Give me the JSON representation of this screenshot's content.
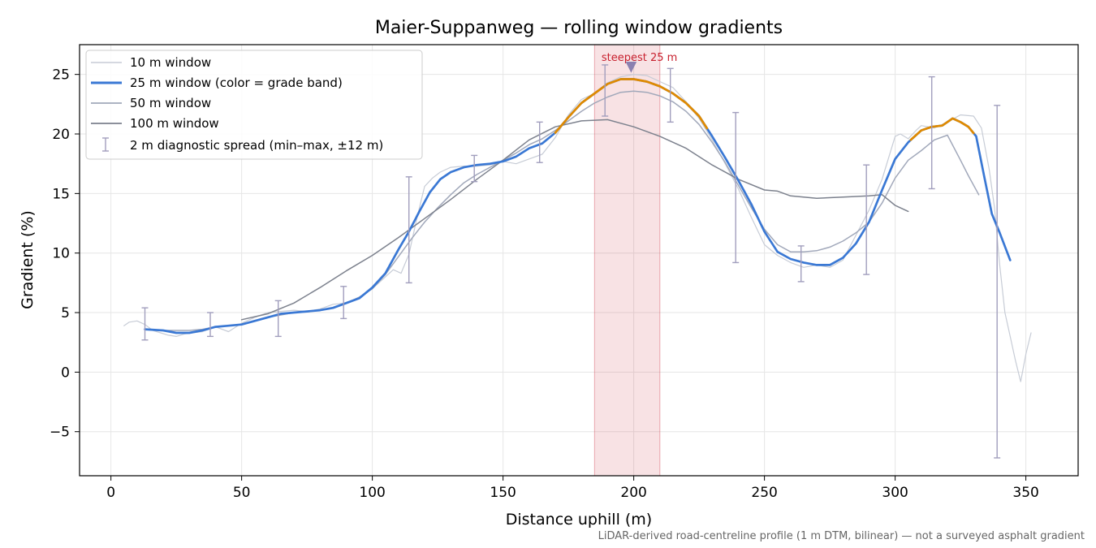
{
  "chart_data": {
    "type": "line",
    "title": "Maier-Suppanweg — rolling window gradients",
    "xlabel": "Distance uphill (m)",
    "ylabel": "Gradient (%)",
    "xlim": [
      -12,
      370
    ],
    "ylim": [
      -8.7,
      27.5
    ],
    "x_ticks": [
      0,
      50,
      100,
      150,
      200,
      250,
      300,
      350
    ],
    "y_ticks": [
      -5,
      0,
      5,
      10,
      15,
      20,
      25
    ],
    "grid": true,
    "legend_position": "upper-left",
    "footnote": "LiDAR-derived road-centreline profile (1 m DTM, bilinear) — not a surveyed asphalt gradient",
    "band_colors": {
      "moderate": "#3a78d4",
      "steep": "#e08a00"
    },
    "steepest": {
      "x_start": 185,
      "x_end": 210,
      "peak_x": 199,
      "peak_y": 24.6,
      "label": "steepest 25 m",
      "color": "#c8202e"
    },
    "series": [
      {
        "name": "10 m window",
        "color": "#c7ccd6",
        "width": 1.2,
        "x": [
          5,
          7,
          10,
          13,
          16,
          19,
          22,
          25,
          28,
          31,
          35,
          40,
          45,
          50,
          55,
          60,
          65,
          70,
          75,
          80,
          85,
          90,
          95,
          100,
          105,
          108,
          111,
          114,
          117,
          120,
          123,
          126,
          130,
          135,
          140,
          145,
          150,
          155,
          160,
          165,
          170,
          175,
          180,
          185,
          190,
          195,
          200,
          205,
          210,
          215,
          220,
          225,
          230,
          235,
          240,
          245,
          250,
          255,
          260,
          265,
          270,
          275,
          280,
          285,
          290,
          295,
          300,
          302,
          305,
          308,
          310,
          315,
          320,
          325,
          330,
          333,
          336,
          338,
          340,
          342,
          344,
          346,
          348,
          350,
          352
        ],
        "y": [
          3.9,
          4.2,
          4.3,
          4.0,
          3.5,
          3.3,
          3.1,
          3.0,
          3.2,
          3.3,
          3.4,
          3.8,
          3.4,
          4.1,
          4.6,
          5.0,
          5.1,
          5.2,
          5.1,
          5.3,
          5.7,
          5.8,
          6.3,
          7.0,
          8.0,
          8.6,
          8.3,
          9.9,
          12.9,
          15.6,
          16.3,
          16.8,
          17.2,
          17.3,
          17.3,
          17.4,
          17.7,
          17.5,
          17.9,
          18.3,
          19.7,
          21.6,
          22.9,
          23.4,
          24.3,
          24.8,
          25.0,
          24.9,
          24.4,
          23.9,
          22.7,
          21.3,
          19.5,
          17.5,
          15.4,
          13.0,
          10.7,
          9.8,
          9.2,
          8.8,
          9.0,
          8.8,
          9.4,
          11.5,
          13.6,
          16.2,
          19.8,
          20.0,
          19.6,
          20.3,
          20.7,
          20.5,
          21.0,
          21.6,
          21.5,
          20.5,
          17.0,
          13.8,
          9.0,
          5.0,
          3.0,
          1.0,
          -0.8,
          1.5,
          3.3
        ]
      },
      {
        "name": "25 m window",
        "color": "#3a78d4",
        "width": 2.7,
        "x": [
          13,
          20,
          25,
          30,
          35,
          40,
          45,
          50,
          55,
          60,
          65,
          70,
          75,
          80,
          85,
          90,
          95,
          100,
          105,
          110,
          114,
          118,
          122,
          126,
          130,
          135,
          140,
          145,
          150,
          155,
          160,
          165,
          170,
          175,
          180,
          185,
          190,
          195,
          200,
          205,
          210,
          215,
          220,
          225,
          230,
          235,
          240,
          245,
          250,
          255,
          260,
          265,
          270,
          275,
          280,
          285,
          290,
          295,
          300,
          305,
          310,
          314,
          318,
          322,
          325,
          328,
          331,
          334,
          337,
          340,
          344
        ],
        "y": [
          3.6,
          3.5,
          3.3,
          3.3,
          3.5,
          3.8,
          3.9,
          4.0,
          4.3,
          4.6,
          4.9,
          5.0,
          5.1,
          5.2,
          5.4,
          5.8,
          6.2,
          7.1,
          8.3,
          10.3,
          11.8,
          13.5,
          15.1,
          16.2,
          16.8,
          17.2,
          17.4,
          17.5,
          17.7,
          18.1,
          18.8,
          19.2,
          20.1,
          21.4,
          22.6,
          23.4,
          24.2,
          24.6,
          24.6,
          24.4,
          24.0,
          23.4,
          22.6,
          21.5,
          19.8,
          18.0,
          16.1,
          14.1,
          11.8,
          10.1,
          9.5,
          9.2,
          9.0,
          9.0,
          9.6,
          10.8,
          12.6,
          15.3,
          17.9,
          19.3,
          20.3,
          20.6,
          20.7,
          21.3,
          21.0,
          20.6,
          19.8,
          16.5,
          13.3,
          11.7,
          9.4
        ],
        "steep_segments": [
          [
            170,
            228
          ],
          [
            306,
            330
          ]
        ]
      },
      {
        "name": "50 m window",
        "color": "#a1a8ba",
        "width": 1.5,
        "x": [
          13,
          20,
          25,
          30,
          35,
          40,
          45,
          50,
          55,
          60,
          65,
          70,
          75,
          80,
          85,
          90,
          95,
          100,
          105,
          110,
          115,
          120,
          125,
          130,
          135,
          140,
          145,
          150,
          155,
          160,
          165,
          170,
          175,
          180,
          185,
          190,
          195,
          200,
          205,
          210,
          215,
          220,
          225,
          230,
          235,
          240,
          245,
          250,
          255,
          260,
          265,
          270,
          275,
          280,
          285,
          290,
          295,
          300,
          305,
          310,
          315,
          320,
          325,
          328,
          332
        ],
        "y": [
          3.6,
          3.5,
          3.5,
          3.5,
          3.6,
          3.8,
          3.9,
          4.0,
          4.3,
          4.6,
          4.8,
          5.0,
          5.1,
          5.2,
          5.4,
          5.8,
          6.3,
          7.0,
          8.2,
          9.7,
          11.2,
          12.6,
          13.8,
          14.9,
          15.9,
          16.6,
          17.2,
          17.8,
          18.4,
          19.1,
          19.6,
          20.3,
          21.1,
          21.9,
          22.6,
          23.1,
          23.5,
          23.6,
          23.5,
          23.2,
          22.7,
          21.9,
          20.8,
          19.3,
          17.6,
          15.7,
          13.8,
          12.0,
          10.7,
          10.1,
          10.1,
          10.2,
          10.5,
          11.0,
          11.7,
          12.6,
          14.2,
          16.3,
          17.8,
          18.6,
          19.5,
          19.9,
          17.8,
          16.5,
          14.9
        ]
      },
      {
        "name": "100 m window",
        "color": "#7c818d",
        "width": 1.5,
        "x": [
          50,
          60,
          70,
          80,
          90,
          100,
          110,
          120,
          130,
          140,
          150,
          160,
          170,
          180,
          190,
          200,
          210,
          220,
          230,
          240,
          250,
          255,
          260,
          270,
          280,
          290,
          295,
          300,
          305
        ],
        "y": [
          4.4,
          4.9,
          5.8,
          7.1,
          8.5,
          9.8,
          11.3,
          12.9,
          14.5,
          16.2,
          17.8,
          19.5,
          20.6,
          21.1,
          21.2,
          20.6,
          19.8,
          18.8,
          17.4,
          16.2,
          15.3,
          15.2,
          14.8,
          14.6,
          14.7,
          14.8,
          14.9,
          14.0,
          13.5
        ]
      }
    ],
    "diagnostic_spread": {
      "name": "2 m diagnostic spread (min–max, ±12 m)",
      "color": "#a19ebd",
      "points": [
        {
          "x": 13,
          "lo": 2.7,
          "hi": 5.4
        },
        {
          "x": 38,
          "lo": 3.0,
          "hi": 5.0
        },
        {
          "x": 64,
          "lo": 3.0,
          "hi": 6.0
        },
        {
          "x": 89,
          "lo": 4.5,
          "hi": 7.2
        },
        {
          "x": 114,
          "lo": 7.5,
          "hi": 16.4
        },
        {
          "x": 139,
          "lo": 16.0,
          "hi": 18.2
        },
        {
          "x": 164,
          "lo": 17.6,
          "hi": 21.0
        },
        {
          "x": 189,
          "lo": 21.5,
          "hi": 25.8
        },
        {
          "x": 214,
          "lo": 21.0,
          "hi": 25.5
        },
        {
          "x": 239,
          "lo": 9.2,
          "hi": 21.8
        },
        {
          "x": 264,
          "lo": 7.6,
          "hi": 10.6
        },
        {
          "x": 289,
          "lo": 8.2,
          "hi": 17.4
        },
        {
          "x": 314,
          "lo": 15.4,
          "hi": 24.8
        },
        {
          "x": 339,
          "lo": -7.2,
          "hi": 22.4
        }
      ]
    },
    "legend_labels": {
      "s10": "10 m window",
      "s25": "25 m window (color = grade band)",
      "s50": "50 m window",
      "s100": "100 m window",
      "spread": "2 m diagnostic spread (min–max, ±12 m)"
    }
  }
}
